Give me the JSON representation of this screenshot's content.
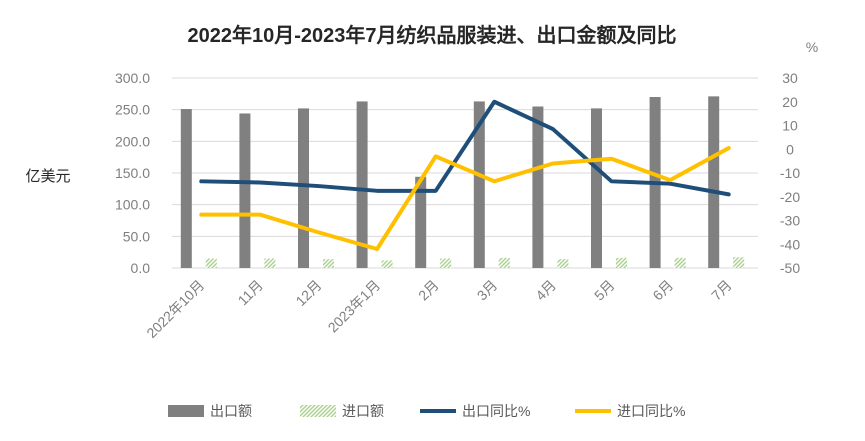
{
  "chart_data": {
    "type": "bar+line",
    "title": "2022年10月-2023年7月纺织品服装进、出口金额及同比",
    "ylabel": "亿美元",
    "y2label": "%",
    "categories": [
      "2022年10月",
      "11月",
      "12月",
      "2023年1月",
      "2月",
      "3月",
      "4月",
      "5月",
      "6月",
      "7月"
    ],
    "ylim": [
      0,
      300
    ],
    "yticks": [
      "0.0",
      "50.0",
      "100.0",
      "150.0",
      "200.0",
      "250.0",
      "300.0"
    ],
    "y2lim": [
      -50,
      30
    ],
    "y2ticks": [
      "-50",
      "-40",
      "-30",
      "-20",
      "-10",
      "0",
      "10",
      "20",
      "30"
    ],
    "series": [
      {
        "name": "出口额",
        "kind": "bar",
        "axis": "left",
        "color": "#808080",
        "values": [
          251,
          244,
          252,
          263,
          144,
          263,
          255,
          252,
          270,
          271
        ]
      },
      {
        "name": "进口额",
        "kind": "bar",
        "axis": "left",
        "color": "#A9D18E",
        "values": [
          15,
          15,
          14,
          12,
          15,
          16,
          14,
          16,
          16,
          17
        ]
      },
      {
        "name": "出口同比%",
        "kind": "line",
        "axis": "right",
        "color": "#1F4E79",
        "values": [
          -13.5,
          -14.0,
          -15.5,
          -17.5,
          -17.5,
          20.0,
          8.5,
          -13.5,
          -14.5,
          -19.0
        ]
      },
      {
        "name": "进口同比%",
        "kind": "line",
        "axis": "right",
        "color": "#FFC000",
        "values": [
          -27.5,
          -27.5,
          -35.0,
          -42.0,
          -3.0,
          -13.5,
          -6.0,
          -4.0,
          -13.0,
          0.5
        ]
      }
    ],
    "legend_position": "bottom"
  }
}
